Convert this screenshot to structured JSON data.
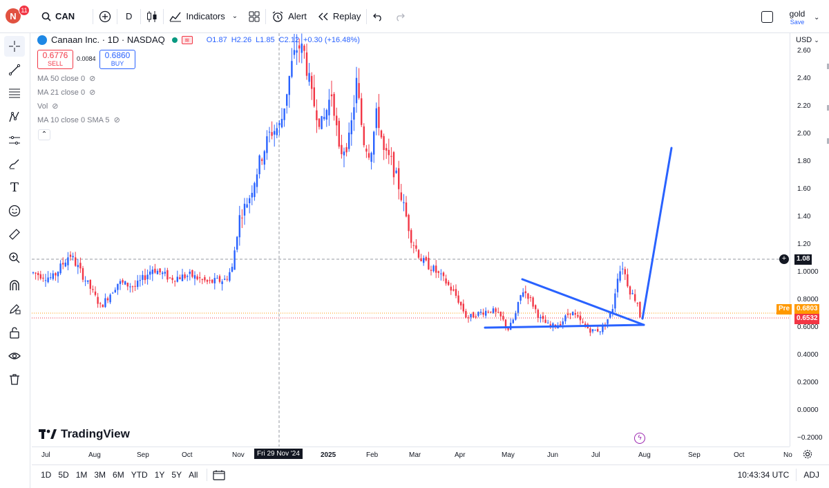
{
  "topbar": {
    "avatar_letter": "N",
    "notif_count": "11",
    "symbol": "CAN",
    "interval": "D",
    "indicators_label": "Indicators",
    "alert_label": "Alert",
    "replay_label": "Replay",
    "layout_name": "gold",
    "save_label": "Save"
  },
  "legend": {
    "title": "Canaan Inc. · 1D · NASDAQ",
    "o": "O1.87",
    "h": "H2.26",
    "l": "L1.85",
    "c": "C2.12",
    "chg": "+0.30 (+16.48%)",
    "sell_price": "0.6776",
    "sell_label": "SELL",
    "spread": "0.0084",
    "buy_price": "0.6860",
    "buy_label": "BUY"
  },
  "indicators": [
    {
      "label": "MA 50 close 0"
    },
    {
      "label": "MA 21 close 0"
    },
    {
      "label": "Vol"
    },
    {
      "label": "MA 10 close 0 SMA 5"
    }
  ],
  "price_axis": {
    "currency": "USD",
    "ticks": [
      "2.60",
      "2.40",
      "2.20",
      "2.00",
      "1.80",
      "1.60",
      "1.40",
      "1.20",
      "1.0000",
      "0.8000",
      "0.6000",
      "0.4000",
      "0.2000",
      "0.0000",
      "−0.2000"
    ],
    "crosshair_value": "1.08",
    "pre_label": "Pre",
    "pre_value": "0.6803",
    "last_value": "0.6532"
  },
  "time_axis": {
    "labels": [
      "Jul",
      "Aug",
      "Sep",
      "Oct",
      "Nov",
      "2025",
      "Feb",
      "Mar",
      "Apr",
      "May",
      "Jun",
      "Jul",
      "Aug",
      "Sep",
      "Oct",
      "No"
    ],
    "crosshair_date": "Fri 29 Nov '24"
  },
  "bottombar": {
    "ranges": [
      "1D",
      "5D",
      "1M",
      "3M",
      "6M",
      "YTD",
      "1Y",
      "5Y",
      "All"
    ],
    "clock": "10:43:34 UTC",
    "adj": "ADJ"
  },
  "watermark": "TradingView",
  "colors": {
    "up": "#2962ff",
    "down": "#f23645",
    "drawing": "#2962ff",
    "pre": "#ff9800"
  },
  "chart_data": {
    "type": "candlestick",
    "symbol": "CAN",
    "exchange": "NASDAQ",
    "interval": "1D",
    "ylim": [
      -0.2,
      2.65
    ],
    "monthly_closes": [
      {
        "month": "Jul",
        "close": 1.02
      },
      {
        "month": "Aug",
        "close": 0.88
      },
      {
        "month": "Sep",
        "close": 0.95
      },
      {
        "month": "Oct",
        "close": 0.98
      },
      {
        "month": "Nov",
        "close": 2.1
      },
      {
        "month": "Dec",
        "close": 2.12
      },
      {
        "month": "2025",
        "close": 1.85
      },
      {
        "month": "Feb",
        "close": 1.55
      },
      {
        "month": "Mar",
        "close": 0.95
      },
      {
        "month": "Apr",
        "close": 0.7
      },
      {
        "month": "May",
        "close": 0.68
      },
      {
        "month": "Jun",
        "close": 0.62
      },
      {
        "month": "Jul",
        "close": 0.9
      },
      {
        "month": "Aug",
        "close": 0.65
      }
    ],
    "annotations": {
      "resistance_trendline": [
        [
          0.93,
          "May"
        ],
        [
          0.62,
          "Aug"
        ]
      ],
      "support_line": 0.59,
      "projection_target": 1.9
    }
  }
}
